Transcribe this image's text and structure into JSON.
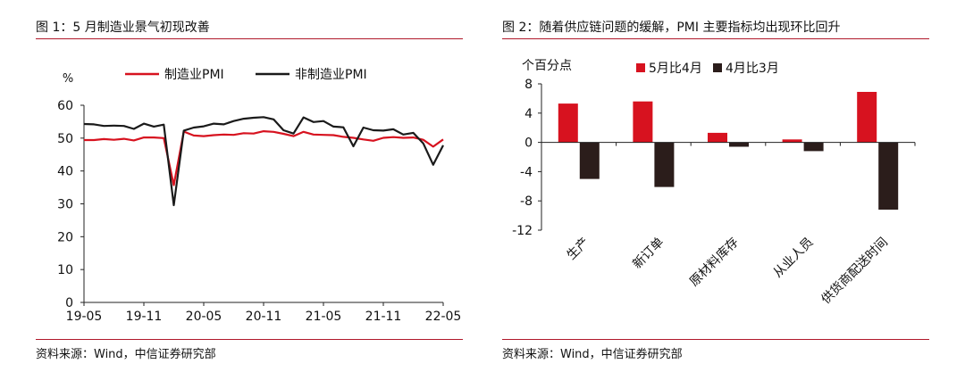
{
  "left": {
    "title": "图 1：5 月制造业景气初现改善",
    "source": "资料来源：Wind，中信证券研究部",
    "chart_data": {
      "type": "line",
      "ylabel": "%",
      "ylim": [
        0,
        60
      ],
      "yticks": [
        0,
        10,
        20,
        30,
        40,
        50,
        60
      ],
      "xtick_labels": [
        "19-05",
        "19-11",
        "20-05",
        "20-11",
        "21-05",
        "21-11",
        "22-05"
      ],
      "months": [
        "19-05",
        "19-06",
        "19-07",
        "19-08",
        "19-09",
        "19-10",
        "19-11",
        "19-12",
        "20-01",
        "20-02",
        "20-03",
        "20-04",
        "20-05",
        "20-06",
        "20-07",
        "20-08",
        "20-09",
        "20-10",
        "20-11",
        "20-12",
        "21-01",
        "21-02",
        "21-03",
        "21-04",
        "21-05",
        "21-06",
        "21-07",
        "21-08",
        "21-09",
        "21-10",
        "21-11",
        "21-12",
        "22-01",
        "22-02",
        "22-03",
        "22-04",
        "22-05"
      ],
      "series": [
        {
          "name": "制造业PMI",
          "color": "#d7121f",
          "values": [
            49.4,
            49.4,
            49.7,
            49.5,
            49.8,
            49.3,
            50.2,
            50.2,
            50.0,
            35.7,
            52.0,
            50.8,
            50.6,
            50.9,
            51.1,
            51.0,
            51.5,
            51.4,
            52.1,
            51.9,
            51.3,
            50.6,
            51.9,
            51.1,
            51.0,
            50.9,
            50.4,
            50.1,
            49.6,
            49.2,
            50.1,
            50.3,
            50.1,
            50.2,
            49.5,
            47.4,
            49.6
          ]
        },
        {
          "name": "非制造业PMI",
          "color": "#1a1a1a",
          "values": [
            54.3,
            54.2,
            53.7,
            53.8,
            53.7,
            52.8,
            54.4,
            53.5,
            54.1,
            29.6,
            52.3,
            53.2,
            53.6,
            54.4,
            54.2,
            55.2,
            55.9,
            56.2,
            56.4,
            55.7,
            52.4,
            51.4,
            56.3,
            54.9,
            55.2,
            53.5,
            53.3,
            47.5,
            53.2,
            52.4,
            52.3,
            52.7,
            51.1,
            51.6,
            48.4,
            41.9,
            47.8
          ]
        }
      ]
    }
  },
  "right": {
    "title": "图 2：随着供应链问题的缓解，PMI 主要指标均出现环比回升",
    "source": "资料来源：Wind，中信证券研究部",
    "chart_data": {
      "type": "bar",
      "ylabel": "个百分点",
      "ylim": [
        -12,
        8
      ],
      "yticks": [
        8,
        4,
        0,
        -4,
        -8,
        -12
      ],
      "categories": [
        "生产",
        "新订单",
        "原材料库存",
        "从业人员",
        "供货商配送时间"
      ],
      "series": [
        {
          "name": "5月比4月",
          "color": "#d7121f",
          "values": [
            5.3,
            5.6,
            1.3,
            0.4,
            6.9
          ]
        },
        {
          "name": "4月比3月",
          "color": "#2b1d1b",
          "values": [
            -5.0,
            -6.1,
            -0.6,
            -1.2,
            -9.2
          ]
        }
      ]
    }
  }
}
